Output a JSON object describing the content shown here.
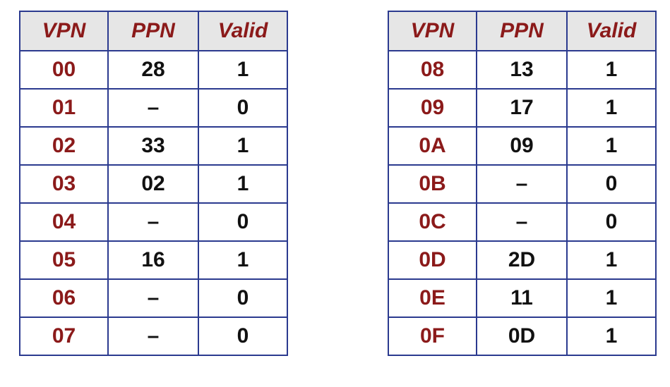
{
  "tables": [
    {
      "headers": {
        "vpn": "VPN",
        "ppn": "PPN",
        "valid": "Valid"
      },
      "rows": [
        {
          "vpn": "00",
          "ppn": "28",
          "valid": "1"
        },
        {
          "vpn": "01",
          "ppn": "–",
          "valid": "0"
        },
        {
          "vpn": "02",
          "ppn": "33",
          "valid": "1"
        },
        {
          "vpn": "03",
          "ppn": "02",
          "valid": "1"
        },
        {
          "vpn": "04",
          "ppn": "–",
          "valid": "0"
        },
        {
          "vpn": "05",
          "ppn": "16",
          "valid": "1"
        },
        {
          "vpn": "06",
          "ppn": "–",
          "valid": "0"
        },
        {
          "vpn": "07",
          "ppn": "–",
          "valid": "0"
        }
      ]
    },
    {
      "headers": {
        "vpn": "VPN",
        "ppn": "PPN",
        "valid": "Valid"
      },
      "rows": [
        {
          "vpn": "08",
          "ppn": "13",
          "valid": "1"
        },
        {
          "vpn": "09",
          "ppn": "17",
          "valid": "1"
        },
        {
          "vpn": "0A",
          "ppn": "09",
          "valid": "1"
        },
        {
          "vpn": "0B",
          "ppn": "–",
          "valid": "0"
        },
        {
          "vpn": "0C",
          "ppn": "–",
          "valid": "0"
        },
        {
          "vpn": "0D",
          "ppn": "2D",
          "valid": "1"
        },
        {
          "vpn": "0E",
          "ppn": "11",
          "valid": "1"
        },
        {
          "vpn": "0F",
          "ppn": "0D",
          "valid": "1"
        }
      ]
    }
  ],
  "colors": {
    "header_text": "#8b1a1a",
    "vpn_text": "#8b1a1a",
    "value_text": "#111111",
    "header_bg": "#e6e6e6",
    "border": "#2b3a8f"
  }
}
